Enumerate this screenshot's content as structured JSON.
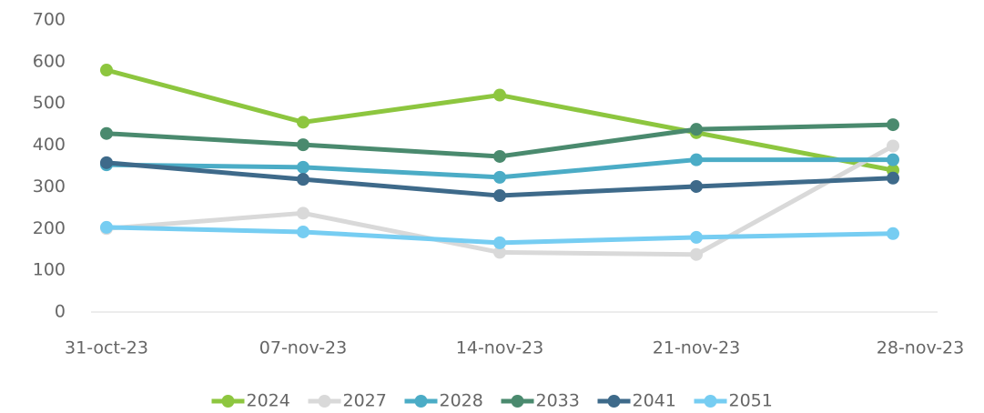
{
  "chart_data": {
    "type": "line",
    "categories": [
      "31-oct-23",
      "07-nov-23",
      "14-nov-23",
      "21-nov-23",
      "28-nov-23"
    ],
    "series": [
      {
        "name": "2024",
        "color": "#8dc63f",
        "values": [
          580,
          455,
          520,
          430,
          340
        ]
      },
      {
        "name": "2027",
        "color": "#d9d9d9",
        "values": [
          200,
          237,
          143,
          138,
          398
        ]
      },
      {
        "name": "2028",
        "color": "#4bacc6",
        "values": [
          353,
          347,
          323,
          365,
          365
        ]
      },
      {
        "name": "2033",
        "color": "#4a8a6e",
        "values": [
          428,
          401,
          373,
          438,
          449
        ]
      },
      {
        "name": "2041",
        "color": "#3e6a8a",
        "values": [
          358,
          318,
          279,
          301,
          321
        ]
      },
      {
        "name": "2051",
        "color": "#76cdf2",
        "values": [
          203,
          192,
          166,
          179,
          188
        ]
      }
    ],
    "ylim": [
      0,
      700
    ],
    "yticks": [
      0,
      100,
      200,
      300,
      400,
      500,
      600,
      700
    ],
    "legend": "bottom"
  }
}
